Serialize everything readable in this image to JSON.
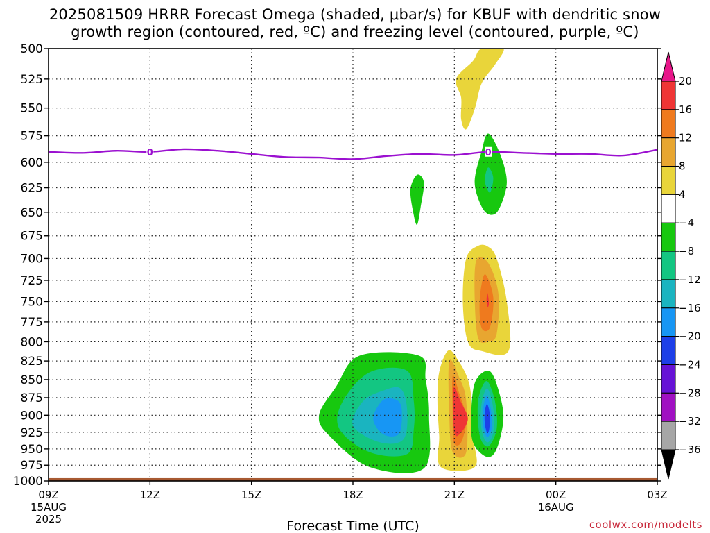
{
  "chart_data": {
    "type": "contour",
    "title_line1": "2025081509 HRRR Forecast Omega (shaded, μbar/s) for KBUF with dendritic snow",
    "title_line2": "growth region (contoured, red, ºC) and freezing level (contoured, purple, ºC)",
    "xlabel": "Forecast Time (UTC)",
    "credit": "coolwx.com/modelts",
    "x_hours": [
      0,
      3,
      6,
      9,
      12,
      15,
      18
    ],
    "x_ticks": [
      "09Z",
      "12Z",
      "15Z",
      "18Z",
      "21Z",
      "00Z",
      "03Z"
    ],
    "x_subticks": [
      {
        "hour": 0,
        "lines": [
          "15AUG",
          "2025"
        ]
      },
      {
        "hour": 15,
        "lines": [
          "16AUG"
        ]
      }
    ],
    "y_axis": {
      "scale": "pressure (hPa)",
      "inverted": true,
      "range": [
        500,
        1000
      ]
    },
    "y_ticks": [
      500,
      525,
      550,
      575,
      600,
      625,
      650,
      675,
      700,
      725,
      750,
      775,
      800,
      825,
      850,
      875,
      900,
      925,
      950,
      975,
      1000
    ],
    "grid": true,
    "colorbar": {
      "levels": [
        "20",
        "16",
        "12",
        "8",
        "4",
        "−4",
        "−8",
        "−12",
        "−16",
        "−20",
        "−24",
        "−28",
        "−32",
        "−36"
      ],
      "colors": [
        "#e8168a",
        "#ef3535",
        "#ef7a1e",
        "#e8a630",
        "#e9d53a",
        "#ffffff",
        "#17c80f",
        "#13c682",
        "#1ab4c0",
        "#1796f4",
        "#1d3fe8",
        "#6612d6",
        "#a010c2",
        "#a6a6a6",
        "#000000"
      ]
    },
    "freezing_level": {
      "color": "#9b10d0",
      "label": "0",
      "points": [
        [
          0,
          590
        ],
        [
          1,
          591
        ],
        [
          2,
          589
        ],
        [
          3,
          590
        ],
        [
          4,
          587.5
        ],
        [
          5,
          589
        ],
        [
          6,
          592
        ],
        [
          7,
          595
        ],
        [
          8,
          595.5
        ],
        [
          9,
          597
        ],
        [
          10,
          594
        ],
        [
          11,
          592
        ],
        [
          12,
          593
        ],
        [
          13,
          590
        ],
        [
          14,
          591
        ],
        [
          15,
          592
        ],
        [
          16,
          592
        ],
        [
          17,
          593.5
        ],
        [
          18,
          588
        ]
      ],
      "label_hours": [
        3,
        13
      ]
    },
    "omega_regions": [
      {
        "name": "upper-positive",
        "value": 4,
        "color": "#e9d53a",
        "points": [
          [
            12.8,
            500
          ],
          [
            13.45,
            500
          ],
          [
            13.2,
            513
          ],
          [
            12.9,
            524
          ],
          [
            12.75,
            533
          ],
          [
            12.6,
            551
          ],
          [
            12.35,
            569
          ],
          [
            12.2,
            560
          ],
          [
            12.2,
            541
          ],
          [
            12.05,
            525
          ],
          [
            12.55,
            510
          ]
        ]
      },
      {
        "name": "mid-negative-small",
        "value": -4,
        "color": "#17c80f",
        "points": [
          [
            10.9,
            612
          ],
          [
            11.1,
            620
          ],
          [
            11.0,
            645
          ],
          [
            10.9,
            663
          ],
          [
            10.8,
            653
          ],
          [
            10.7,
            627
          ]
        ]
      },
      {
        "name": "mid-negative-right",
        "value": -4,
        "color": "#17c80f",
        "points": [
          [
            13.0,
            573
          ],
          [
            13.35,
            592
          ],
          [
            13.55,
            620
          ],
          [
            13.3,
            648
          ],
          [
            13.0,
            652
          ],
          [
            12.75,
            640
          ],
          [
            12.6,
            618
          ],
          [
            12.8,
            590
          ]
        ]
      },
      {
        "name": "mid-negative-right-core",
        "value": -8,
        "color": "#13c682",
        "points": [
          [
            13.0,
            605
          ],
          [
            13.15,
            615
          ],
          [
            13.05,
            630
          ],
          [
            12.9,
            618
          ]
        ]
      },
      {
        "name": "mid-positive-4",
        "value": 4,
        "color": "#e9d53a",
        "points": [
          [
            12.35,
            700
          ],
          [
            12.7,
            686
          ],
          [
            13.0,
            687
          ],
          [
            13.25,
            700
          ],
          [
            13.55,
            750
          ],
          [
            13.6,
            812
          ],
          [
            12.8,
            812
          ],
          [
            12.4,
            800
          ],
          [
            12.25,
            750
          ]
        ]
      },
      {
        "name": "mid-positive-8",
        "value": 8,
        "color": "#e8a630",
        "points": [
          [
            12.65,
            702
          ],
          [
            13.0,
            705
          ],
          [
            13.3,
            740
          ],
          [
            13.25,
            790
          ],
          [
            13.0,
            800
          ],
          [
            12.7,
            795
          ],
          [
            12.6,
            745
          ]
        ]
      },
      {
        "name": "mid-positive-12",
        "value": 12,
        "color": "#ef7a1e",
        "points": [
          [
            12.9,
            718
          ],
          [
            13.15,
            745
          ],
          [
            13.05,
            782
          ],
          [
            12.8,
            782
          ],
          [
            12.75,
            748
          ]
        ]
      },
      {
        "name": "mid-positive-16",
        "value": 16,
        "color": "#ef3535",
        "points": [
          [
            12.98,
            740
          ],
          [
            13.02,
            752
          ],
          [
            12.98,
            757
          ],
          [
            12.95,
            748
          ]
        ]
      },
      {
        "name": "low-negative-4",
        "value": -4,
        "color": "#17c80f",
        "points": [
          [
            9.2,
            818
          ],
          [
            10.95,
            818
          ],
          [
            11.15,
            850
          ],
          [
            11.25,
            900
          ],
          [
            11.1,
            980
          ],
          [
            9.5,
            978
          ],
          [
            8.3,
            930
          ],
          [
            8.0,
            900
          ],
          [
            8.5,
            860
          ]
        ]
      },
      {
        "name": "low-negative-8",
        "value": -8,
        "color": "#13c682",
        "points": [
          [
            9.5,
            840
          ],
          [
            10.6,
            838
          ],
          [
            10.8,
            880
          ],
          [
            10.8,
            920
          ],
          [
            10.6,
            958
          ],
          [
            9.5,
            955
          ],
          [
            8.6,
            920
          ],
          [
            8.7,
            880
          ]
        ]
      },
      {
        "name": "low-negative-12",
        "value": -12,
        "color": "#1ab4c0",
        "points": [
          [
            9.9,
            865
          ],
          [
            10.4,
            862
          ],
          [
            10.6,
            890
          ],
          [
            10.5,
            935
          ],
          [
            9.8,
            940
          ],
          [
            9.0,
            915
          ],
          [
            9.3,
            880
          ]
        ]
      },
      {
        "name": "low-negative-16",
        "value": -16,
        "color": "#1796f4",
        "points": [
          [
            9.9,
            878
          ],
          [
            10.35,
            880
          ],
          [
            10.45,
            900
          ],
          [
            10.35,
            928
          ],
          [
            9.9,
            928
          ],
          [
            9.6,
            905
          ]
        ]
      },
      {
        "name": "low-positive-4",
        "value": 4,
        "color": "#e9d53a",
        "points": [
          [
            11.55,
            840
          ],
          [
            11.8,
            812
          ],
          [
            12.05,
            820
          ],
          [
            12.45,
            858
          ],
          [
            12.55,
            930
          ],
          [
            12.6,
            978
          ],
          [
            11.6,
            978
          ],
          [
            11.55,
            930
          ],
          [
            11.5,
            880
          ]
        ]
      },
      {
        "name": "low-positive-8",
        "value": 8,
        "color": "#e8a630",
        "points": [
          [
            11.85,
            825
          ],
          [
            12.15,
            848
          ],
          [
            12.35,
            880
          ],
          [
            12.35,
            955
          ],
          [
            11.95,
            955
          ],
          [
            11.85,
            900
          ]
        ]
      },
      {
        "name": "low-positive-12",
        "value": 12,
        "color": "#ef7a1e",
        "points": [
          [
            11.95,
            845
          ],
          [
            12.15,
            870
          ],
          [
            12.35,
            905
          ],
          [
            12.2,
            940
          ],
          [
            11.98,
            940
          ],
          [
            11.95,
            900
          ]
        ]
      },
      {
        "name": "low-positive-16",
        "value": 16,
        "color": "#ef3535",
        "points": [
          [
            11.97,
            862
          ],
          [
            12.2,
            882
          ],
          [
            12.4,
            905
          ],
          [
            12.2,
            925
          ],
          [
            12.0,
            925
          ]
        ]
      },
      {
        "name": "low-negative-right-4",
        "value": -4,
        "color": "#17c80f",
        "points": [
          [
            12.95,
            838
          ],
          [
            13.2,
            850
          ],
          [
            13.45,
            900
          ],
          [
            13.25,
            950
          ],
          [
            12.95,
            962
          ],
          [
            12.55,
            940
          ],
          [
            12.5,
            900
          ],
          [
            12.6,
            855
          ]
        ]
      },
      {
        "name": "low-negative-right-8",
        "value": -8,
        "color": "#13c682",
        "points": [
          [
            12.95,
            852
          ],
          [
            13.2,
            880
          ],
          [
            13.25,
            920
          ],
          [
            13.0,
            946
          ],
          [
            12.75,
            930
          ],
          [
            12.7,
            880
          ]
        ]
      },
      {
        "name": "low-negative-right-12",
        "value": -12,
        "color": "#1ab4c0",
        "points": [
          [
            12.97,
            862
          ],
          [
            13.15,
            890
          ],
          [
            13.15,
            925
          ],
          [
            12.97,
            940
          ],
          [
            12.8,
            920
          ],
          [
            12.8,
            885
          ]
        ]
      },
      {
        "name": "low-negative-right-16",
        "value": -16,
        "color": "#1796f4",
        "points": [
          [
            12.97,
            872
          ],
          [
            13.1,
            898
          ],
          [
            13.1,
            920
          ],
          [
            12.97,
            932
          ],
          [
            12.85,
            915
          ],
          [
            12.85,
            890
          ]
        ]
      },
      {
        "name": "low-negative-right-20",
        "value": -20,
        "color": "#1d3fe8",
        "points": [
          [
            12.97,
            884
          ],
          [
            13.05,
            900
          ],
          [
            13.03,
            920
          ],
          [
            12.97,
            926
          ],
          [
            12.9,
            912
          ],
          [
            12.9,
            895
          ]
        ]
      }
    ],
    "surface": {
      "color": "#a85a32",
      "pressure_top": 995.5
    }
  }
}
